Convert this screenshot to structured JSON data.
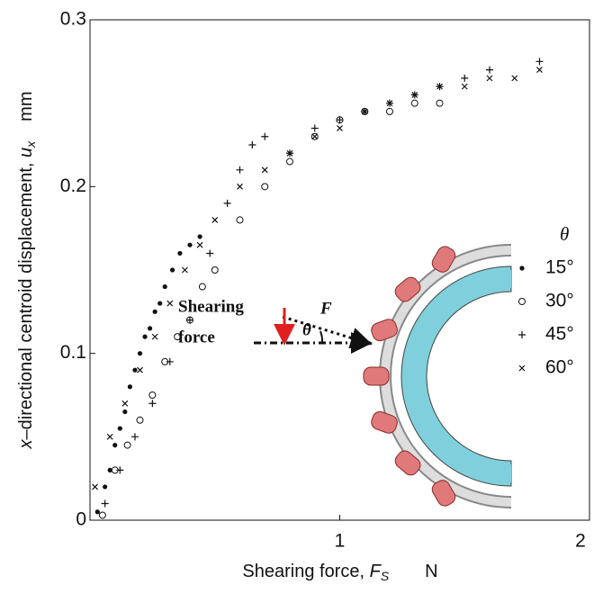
{
  "chart_data": {
    "type": "scatter",
    "x_label": {
      "text": "Shearing force, ",
      "var": "F",
      "sub": "S",
      "unit": "N"
    },
    "y_label": {
      "var_pre": "x",
      "text": "–directional centroid displacement, ",
      "var": "u",
      "sub": "x",
      "unit": "mm"
    },
    "xlim": [
      0,
      2
    ],
    "ylim": [
      0,
      0.3
    ],
    "xticks": [
      1,
      2
    ],
    "yticks": [
      0,
      0.1,
      0.2,
      0.3
    ],
    "legend_title": "θ",
    "legend": "right",
    "series": [
      {
        "name": "15°",
        "marker": "dot",
        "color": "#111",
        "x": [
          0.03,
          0.06,
          0.08,
          0.1,
          0.12,
          0.14,
          0.16,
          0.18,
          0.2,
          0.22,
          0.24,
          0.26,
          0.28,
          0.3,
          0.33,
          0.36,
          0.4,
          0.44
        ],
        "values": [
          0.005,
          0.02,
          0.03,
          0.045,
          0.055,
          0.065,
          0.08,
          0.09,
          0.1,
          0.11,
          0.115,
          0.125,
          0.13,
          0.14,
          0.15,
          0.16,
          0.165,
          0.17
        ]
      },
      {
        "name": "30°",
        "marker": "circle",
        "color": "#111",
        "x": [
          0.05,
          0.1,
          0.15,
          0.2,
          0.25,
          0.3,
          0.35,
          0.4,
          0.45,
          0.5,
          0.6,
          0.7,
          0.8,
          0.9,
          1.0,
          1.1,
          1.2,
          1.3,
          1.4
        ],
        "values": [
          0.003,
          0.03,
          0.045,
          0.06,
          0.075,
          0.095,
          0.11,
          0.12,
          0.14,
          0.15,
          0.18,
          0.2,
          0.215,
          0.23,
          0.24,
          0.245,
          0.245,
          0.25,
          0.25
        ]
      },
      {
        "name": "45°",
        "marker": "plus",
        "color": "#111",
        "x": [
          0.06,
          0.12,
          0.18,
          0.25,
          0.32,
          0.4,
          0.48,
          0.55,
          0.6,
          0.65,
          0.7,
          0.8,
          0.9,
          1.0,
          1.1,
          1.2,
          1.3,
          1.4,
          1.5,
          1.6,
          1.8
        ],
        "values": [
          0.01,
          0.03,
          0.05,
          0.07,
          0.095,
          0.12,
          0.16,
          0.19,
          0.21,
          0.225,
          0.23,
          0.22,
          0.235,
          0.24,
          0.245,
          0.25,
          0.255,
          0.26,
          0.265,
          0.27,
          0.275
        ]
      },
      {
        "name": "60°",
        "marker": "cross",
        "color": "#111",
        "x": [
          0.02,
          0.08,
          0.14,
          0.2,
          0.26,
          0.32,
          0.38,
          0.44,
          0.5,
          0.6,
          0.7,
          0.8,
          0.9,
          1.0,
          1.1,
          1.2,
          1.3,
          1.4,
          1.5,
          1.6,
          1.7,
          1.8
        ],
        "values": [
          0.02,
          0.05,
          0.07,
          0.09,
          0.11,
          0.13,
          0.15,
          0.165,
          0.18,
          0.2,
          0.21,
          0.22,
          0.23,
          0.235,
          0.245,
          0.25,
          0.255,
          0.26,
          0.26,
          0.265,
          0.265,
          0.27
        ]
      }
    ]
  },
  "inset": {
    "label_lines": [
      "Shearing",
      "force"
    ],
    "force": "F",
    "angle": "θ"
  }
}
